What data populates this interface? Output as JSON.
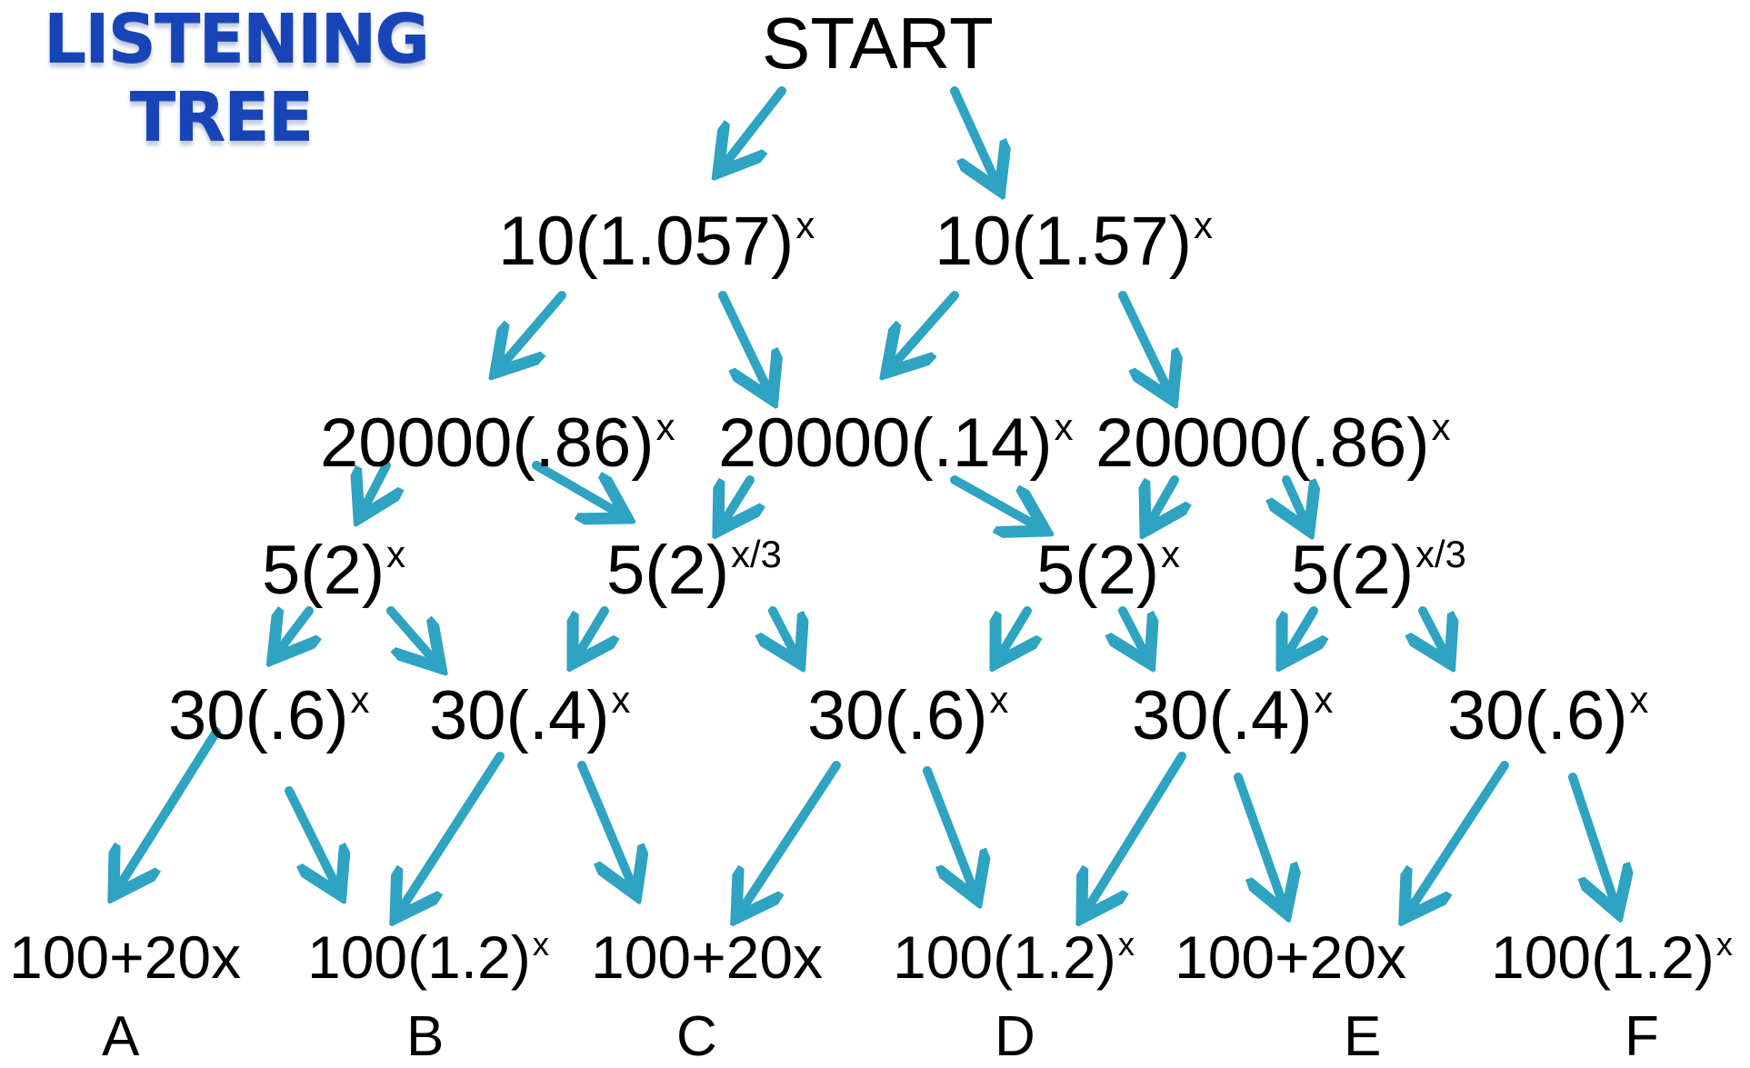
{
  "title": {
    "line1": "LISTENING",
    "line2": "TREE"
  },
  "nodes": {
    "start": "START",
    "l1a": "10(1.057)",
    "l1a_exp": "x",
    "l1b": "10(1.57)",
    "l1b_exp": "x",
    "l2a": "20000(.86)",
    "l2a_exp": "x",
    "l2b": "20000(.14)",
    "l2b_exp": "x",
    "l2c": "20000(.86)",
    "l2c_exp": "x",
    "l3a": "5(2)",
    "l3a_exp": "x",
    "l3b": "5(2)",
    "l3b_exp": "x/3",
    "l3c": "5(2)",
    "l3c_exp": "x",
    "l3d": "5(2)",
    "l3d_exp": "x/3",
    "l4a": "30(.6)",
    "l4a_exp": "x",
    "l4b": "30(.4)",
    "l4b_exp": "x",
    "l4c": "30(.6)",
    "l4c_exp": "x",
    "l4d": "30(.4)",
    "l4d_exp": "x",
    "l4e": "30(.6)",
    "l4e_exp": "x",
    "l5a": "100+20x",
    "l5b": "100(1.2)",
    "l5b_exp": "x",
    "l5c": "100+20x",
    "l5d": "100(1.2)",
    "l5d_exp": "x",
    "l5e": "100+20x",
    "l5f": "100(1.2)",
    "l5f_exp": "x"
  },
  "letters": [
    "A",
    "B",
    "C",
    "D",
    "E",
    "F"
  ],
  "colors": {
    "arrow": "#2ea3c2",
    "title": "#1745b8",
    "text": "#000000"
  }
}
